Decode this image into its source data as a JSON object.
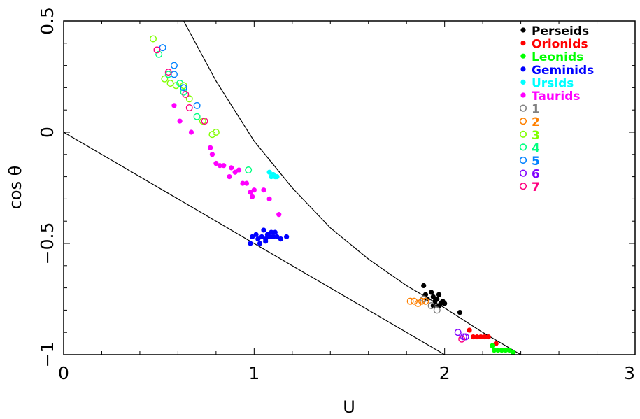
{
  "chart_data": {
    "type": "scatter",
    "title": "",
    "xlabel": "U",
    "ylabel": "cos θ",
    "xlim": [
      0,
      3
    ],
    "ylim": [
      -1,
      0.5
    ],
    "x_ticks": [
      {
        "value": 0,
        "label": "0"
      },
      {
        "value": 1,
        "label": "1"
      },
      {
        "value": 2,
        "label": "2"
      },
      {
        "value": 3,
        "label": "3"
      }
    ],
    "y_ticks": [
      {
        "value": -1,
        "label": "−1"
      },
      {
        "value": -0.5,
        "label": "−0.5"
      },
      {
        "value": 0,
        "label": "0"
      },
      {
        "value": 0.5,
        "label": "0.5"
      }
    ],
    "grid": false,
    "legend_position": "top-right",
    "series": [
      {
        "name": "Perseids",
        "color": "#000000",
        "marker": "filled",
        "points": [
          [
            1.89,
            -0.69
          ],
          [
            1.9,
            -0.73
          ],
          [
            1.91,
            -0.75
          ],
          [
            1.93,
            -0.72
          ],
          [
            1.94,
            -0.74
          ],
          [
            1.95,
            -0.76
          ],
          [
            1.96,
            -0.75
          ],
          [
            1.97,
            -0.78
          ],
          [
            1.98,
            -0.77
          ],
          [
            1.99,
            -0.76
          ],
          [
            1.97,
            -0.73
          ],
          [
            1.94,
            -0.78
          ],
          [
            2.0,
            -0.77
          ],
          [
            2.08,
            -0.81
          ]
        ]
      },
      {
        "name": "Orionids",
        "color": "#ff0000",
        "marker": "filled",
        "points": [
          [
            2.13,
            -0.89
          ],
          [
            2.15,
            -0.92
          ],
          [
            2.17,
            -0.92
          ],
          [
            2.19,
            -0.92
          ],
          [
            2.21,
            -0.92
          ],
          [
            2.23,
            -0.92
          ],
          [
            2.27,
            -0.95
          ]
        ]
      },
      {
        "name": "Leonids",
        "color": "#00ff00",
        "marker": "filled",
        "points": [
          [
            2.25,
            -0.96
          ],
          [
            2.26,
            -0.98
          ],
          [
            2.28,
            -0.98
          ],
          [
            2.3,
            -0.98
          ],
          [
            2.32,
            -0.98
          ],
          [
            2.34,
            -0.98
          ],
          [
            2.36,
            -0.99
          ]
        ]
      },
      {
        "name": "Geminids",
        "color": "#0000ff",
        "marker": "filled",
        "points": [
          [
            0.98,
            -0.5
          ],
          [
            0.99,
            -0.47
          ],
          [
            1.01,
            -0.46
          ],
          [
            1.02,
            -0.48
          ],
          [
            1.04,
            -0.47
          ],
          [
            1.05,
            -0.44
          ],
          [
            1.06,
            -0.49
          ],
          [
            1.07,
            -0.46
          ],
          [
            1.08,
            -0.47
          ],
          [
            1.09,
            -0.45
          ],
          [
            1.1,
            -0.47
          ],
          [
            1.11,
            -0.45
          ],
          [
            1.12,
            -0.47
          ],
          [
            1.14,
            -0.48
          ],
          [
            1.17,
            -0.47
          ],
          [
            1.03,
            -0.5
          ],
          [
            1.06,
            -0.48
          ]
        ]
      },
      {
        "name": "Ursids",
        "color": "#00ffff",
        "marker": "filled",
        "points": [
          [
            1.08,
            -0.18
          ],
          [
            1.09,
            -0.2
          ],
          [
            1.1,
            -0.19
          ],
          [
            1.11,
            -0.2
          ],
          [
            1.12,
            -0.2
          ]
        ]
      },
      {
        "name": "Taurids",
        "color": "#ff00ff",
        "marker": "filled",
        "points": [
          [
            0.58,
            0.12
          ],
          [
            0.61,
            0.05
          ],
          [
            0.67,
            0.0
          ],
          [
            0.77,
            -0.07
          ],
          [
            0.78,
            -0.1
          ],
          [
            0.8,
            -0.14
          ],
          [
            0.82,
            -0.15
          ],
          [
            0.84,
            -0.15
          ],
          [
            0.87,
            -0.2
          ],
          [
            0.88,
            -0.16
          ],
          [
            0.9,
            -0.18
          ],
          [
            0.92,
            -0.17
          ],
          [
            0.94,
            -0.23
          ],
          [
            0.96,
            -0.23
          ],
          [
            0.98,
            -0.27
          ],
          [
            0.99,
            -0.29
          ],
          [
            1.0,
            -0.26
          ],
          [
            1.05,
            -0.26
          ],
          [
            1.08,
            -0.3
          ],
          [
            1.13,
            -0.37
          ]
        ]
      },
      {
        "name": "1",
        "color": "#808080",
        "marker": "open",
        "points": [
          [
            1.89,
            -0.75
          ],
          [
            1.9,
            -0.76
          ],
          [
            1.93,
            -0.78
          ],
          [
            1.96,
            -0.8
          ]
        ]
      },
      {
        "name": "2",
        "color": "#ff8000",
        "marker": "open",
        "points": [
          [
            1.82,
            -0.76
          ],
          [
            1.84,
            -0.76
          ],
          [
            1.86,
            -0.77
          ],
          [
            1.88,
            -0.76
          ],
          [
            1.9,
            -0.76
          ]
        ]
      },
      {
        "name": "3",
        "color": "#80ff00",
        "marker": "open",
        "points": [
          [
            0.47,
            0.42
          ],
          [
            0.53,
            0.24
          ],
          [
            0.56,
            0.22
          ],
          [
            0.59,
            0.21
          ],
          [
            0.63,
            0.21
          ],
          [
            0.66,
            0.15
          ],
          [
            0.73,
            0.05
          ],
          [
            0.78,
            -0.01
          ],
          [
            0.8,
            0.0
          ]
        ]
      },
      {
        "name": "4",
        "color": "#00ff80",
        "marker": "open",
        "points": [
          [
            0.5,
            0.35
          ],
          [
            0.55,
            0.26
          ],
          [
            0.61,
            0.22
          ],
          [
            0.63,
            0.18
          ],
          [
            0.7,
            0.07
          ],
          [
            0.97,
            -0.17
          ]
        ]
      },
      {
        "name": "5",
        "color": "#0080ff",
        "marker": "open",
        "points": [
          [
            0.52,
            0.38
          ],
          [
            0.58,
            0.3
          ],
          [
            0.58,
            0.26
          ],
          [
            0.63,
            0.2
          ],
          [
            0.7,
            0.12
          ]
        ]
      },
      {
        "name": "6",
        "color": "#8000ff",
        "marker": "open",
        "points": [
          [
            2.07,
            -0.9
          ],
          [
            2.1,
            -0.92
          ],
          [
            2.11,
            -0.92
          ]
        ]
      },
      {
        "name": "7",
        "color": "#ff0080",
        "marker": "open",
        "points": [
          [
            0.49,
            0.37
          ],
          [
            0.55,
            0.27
          ],
          [
            0.64,
            0.17
          ],
          [
            0.66,
            0.11
          ],
          [
            0.74,
            0.05
          ],
          [
            2.09,
            -0.93
          ]
        ]
      }
    ],
    "legend": [
      {
        "label": "Perseids",
        "color": "#000000",
        "marker": "filled"
      },
      {
        "label": "Orionids",
        "color": "#ff0000",
        "marker": "filled"
      },
      {
        "label": "Leonids",
        "color": "#00ff00",
        "marker": "filled"
      },
      {
        "label": "Geminids",
        "color": "#0000ff",
        "marker": "filled"
      },
      {
        "label": "Ursids",
        "color": "#00ffff",
        "marker": "filled"
      },
      {
        "label": "Taurids",
        "color": "#ff00ff",
        "marker": "filled"
      },
      {
        "label": "1",
        "color": "#808080",
        "marker": "open"
      },
      {
        "label": "2",
        "color": "#ff8000",
        "marker": "open"
      },
      {
        "label": "3",
        "color": "#80ff00",
        "marker": "open"
      },
      {
        "label": "4",
        "color": "#00ff80",
        "marker": "open"
      },
      {
        "label": "5",
        "color": "#0080ff",
        "marker": "open"
      },
      {
        "label": "6",
        "color": "#8000ff",
        "marker": "open"
      },
      {
        "label": "7",
        "color": "#ff0080",
        "marker": "open"
      }
    ],
    "curves": [
      {
        "kind": "line",
        "points": [
          [
            0,
            0
          ],
          [
            2,
            -1
          ]
        ]
      },
      {
        "kind": "curve",
        "points": [
          [
            0.63,
            0.5
          ],
          [
            0.8,
            0.23
          ],
          [
            1.0,
            -0.04
          ],
          [
            1.2,
            -0.25
          ],
          [
            1.4,
            -0.43
          ],
          [
            1.6,
            -0.57
          ],
          [
            1.8,
            -0.69
          ],
          [
            2.0,
            -0.79
          ],
          [
            2.2,
            -0.9
          ],
          [
            2.4,
            -1.0
          ]
        ]
      }
    ]
  }
}
